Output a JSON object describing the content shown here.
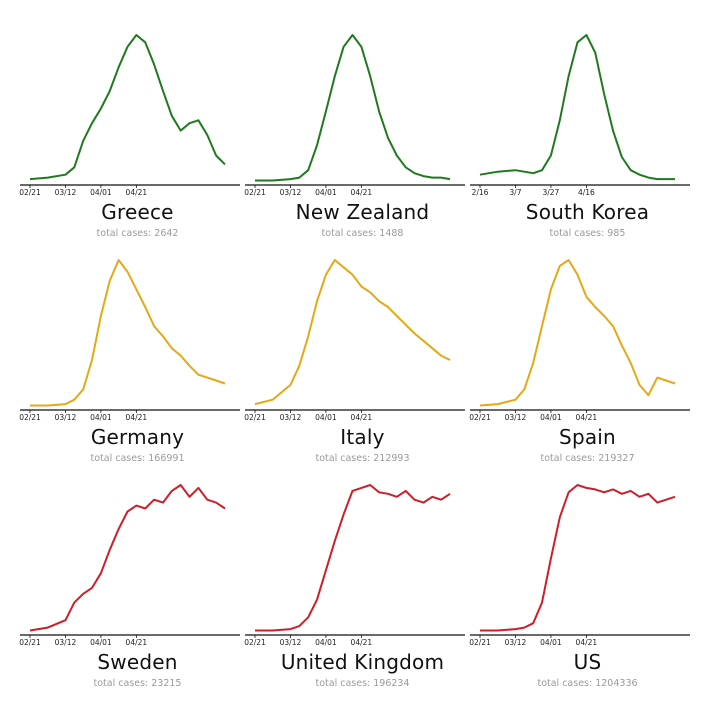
{
  "chart_data": [
    {
      "type": "line",
      "country": "Greece",
      "total_label": "total cases: 2642",
      "color": "#1f7a1f",
      "ticks": [
        "02/21",
        "03/12",
        "04/01",
        "04/21"
      ],
      "x_days": [
        0,
        10,
        20,
        25,
        30,
        35,
        40,
        45,
        50,
        55,
        60,
        65,
        70,
        75,
        80,
        85,
        90,
        95,
        100,
        105,
        110
      ],
      "values": [
        0.02,
        0.03,
        0.05,
        0.1,
        0.28,
        0.4,
        0.5,
        0.62,
        0.78,
        0.92,
        1.0,
        0.95,
        0.8,
        0.62,
        0.45,
        0.35,
        0.4,
        0.42,
        0.32,
        0.18,
        0.12
      ]
    },
    {
      "type": "line",
      "country": "New Zealand",
      "total_label": "total cases: 1488",
      "color": "#1f7a1f",
      "ticks": [
        "02/21",
        "03/12",
        "04/01",
        "04/21"
      ],
      "x_days": [
        0,
        10,
        20,
        25,
        30,
        35,
        40,
        45,
        50,
        55,
        60,
        65,
        70,
        75,
        80,
        85,
        90,
        95,
        100,
        105,
        110
      ],
      "values": [
        0.01,
        0.01,
        0.02,
        0.03,
        0.08,
        0.25,
        0.48,
        0.72,
        0.92,
        1.0,
        0.92,
        0.72,
        0.48,
        0.3,
        0.18,
        0.1,
        0.06,
        0.04,
        0.03,
        0.03,
        0.02
      ]
    },
    {
      "type": "line",
      "country": "South Korea",
      "total_label": "total cases: 985",
      "color": "#1f7a1f",
      "ticks": [
        "2/16",
        "3/7",
        "3/27",
        "4/16"
      ],
      "x_days": [
        0,
        10,
        20,
        25,
        30,
        35,
        40,
        45,
        50,
        55,
        60,
        65,
        70,
        75,
        80,
        85,
        90,
        95,
        100,
        105,
        110
      ],
      "values": [
        0.05,
        0.07,
        0.08,
        0.07,
        0.06,
        0.08,
        0.18,
        0.42,
        0.72,
        0.95,
        1.0,
        0.88,
        0.6,
        0.35,
        0.17,
        0.08,
        0.05,
        0.03,
        0.02,
        0.02,
        0.02
      ]
    },
    {
      "type": "line",
      "country": "Germany",
      "total_label": "total cases: 166991",
      "color": "#e6a817",
      "ticks": [
        "02/21",
        "03/12",
        "04/01",
        "04/21"
      ],
      "x_days": [
        0,
        10,
        20,
        25,
        30,
        35,
        40,
        45,
        50,
        55,
        60,
        65,
        70,
        75,
        80,
        85,
        90,
        95,
        100,
        105,
        110
      ],
      "values": [
        0.01,
        0.01,
        0.02,
        0.05,
        0.12,
        0.32,
        0.62,
        0.86,
        1.0,
        0.92,
        0.8,
        0.68,
        0.55,
        0.48,
        0.4,
        0.35,
        0.28,
        0.22,
        0.2,
        0.18,
        0.16
      ]
    },
    {
      "type": "line",
      "country": "Italy",
      "total_label": "total cases: 212993",
      "color": "#e6a817",
      "ticks": [
        "02/21",
        "03/12",
        "04/01",
        "04/21"
      ],
      "x_days": [
        0,
        10,
        20,
        25,
        30,
        35,
        40,
        45,
        50,
        55,
        60,
        65,
        70,
        75,
        80,
        85,
        90,
        95,
        100,
        105,
        110
      ],
      "values": [
        0.02,
        0.05,
        0.15,
        0.28,
        0.48,
        0.72,
        0.9,
        1.0,
        0.95,
        0.9,
        0.82,
        0.78,
        0.72,
        0.68,
        0.62,
        0.56,
        0.5,
        0.45,
        0.4,
        0.35,
        0.32
      ]
    },
    {
      "type": "line",
      "country": "Spain",
      "total_label": "total cases: 219327",
      "color": "#e6a817",
      "ticks": [
        "02/21",
        "03/12",
        "04/01",
        "04/21"
      ],
      "x_days": [
        0,
        10,
        20,
        25,
        30,
        35,
        40,
        45,
        50,
        55,
        60,
        65,
        70,
        75,
        80,
        85,
        90,
        95,
        100,
        105,
        110
      ],
      "values": [
        0.01,
        0.02,
        0.05,
        0.12,
        0.3,
        0.55,
        0.8,
        0.96,
        1.0,
        0.9,
        0.75,
        0.68,
        0.62,
        0.55,
        0.42,
        0.3,
        0.15,
        0.08,
        0.2,
        0.18,
        0.16
      ]
    },
    {
      "type": "line",
      "country": "Sweden",
      "total_label": "total cases: 23215",
      "color": "#cc1f2a",
      "ticks": [
        "02/21",
        "03/12",
        "04/01",
        "04/21"
      ],
      "x_days": [
        0,
        10,
        20,
        25,
        30,
        35,
        40,
        45,
        50,
        55,
        60,
        65,
        70,
        75,
        80,
        85,
        90,
        95,
        100,
        105,
        110
      ],
      "values": [
        0.01,
        0.03,
        0.08,
        0.2,
        0.26,
        0.3,
        0.4,
        0.56,
        0.7,
        0.82,
        0.86,
        0.84,
        0.9,
        0.88,
        0.96,
        1.0,
        0.92,
        0.98,
        0.9,
        0.88,
        0.84
      ]
    },
    {
      "type": "line",
      "country": "United Kingdom",
      "total_label": "total cases: 196234",
      "color": "#cc1f2a",
      "ticks": [
        "02/21",
        "03/12",
        "04/01",
        "04/21"
      ],
      "x_days": [
        0,
        10,
        20,
        25,
        30,
        35,
        40,
        45,
        50,
        55,
        60,
        65,
        70,
        75,
        80,
        85,
        90,
        95,
        100,
        105,
        110
      ],
      "values": [
        0.01,
        0.01,
        0.02,
        0.04,
        0.1,
        0.22,
        0.42,
        0.62,
        0.8,
        0.96,
        0.98,
        1.0,
        0.95,
        0.94,
        0.92,
        0.96,
        0.9,
        0.88,
        0.92,
        0.9,
        0.94
      ]
    },
    {
      "type": "line",
      "country": "US",
      "total_label": "total cases: 1204336",
      "color": "#cc1f2a",
      "ticks": [
        "02/21",
        "03/12",
        "04/01",
        "04/21"
      ],
      "x_days": [
        0,
        10,
        20,
        25,
        30,
        35,
        40,
        45,
        50,
        55,
        60,
        65,
        70,
        75,
        80,
        85,
        90,
        95,
        100,
        105,
        110
      ],
      "values": [
        0.01,
        0.01,
        0.02,
        0.03,
        0.06,
        0.2,
        0.5,
        0.78,
        0.95,
        1.0,
        0.98,
        0.97,
        0.95,
        0.97,
        0.94,
        0.96,
        0.92,
        0.94,
        0.88,
        0.9,
        0.92
      ]
    }
  ]
}
